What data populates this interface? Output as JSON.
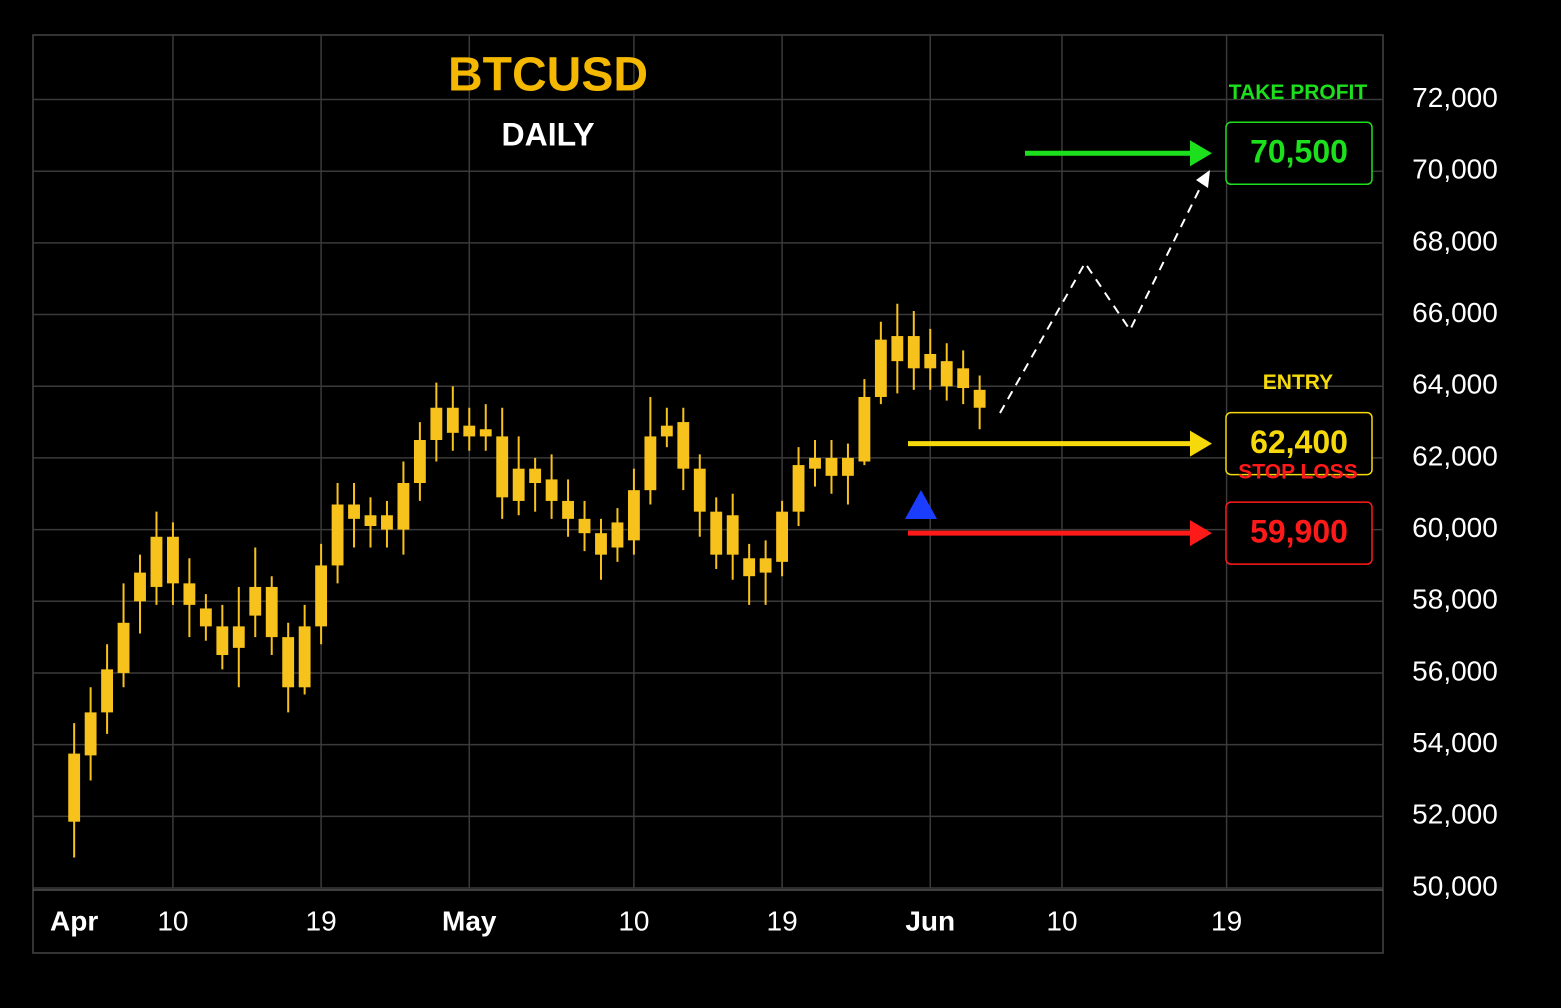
{
  "chart_data": {
    "type": "candlestick",
    "title": "BTCUSD",
    "subtitle": "DAILY",
    "categories": [
      null,
      null,
      "Apr",
      null,
      null,
      null,
      null,
      null,
      "10",
      null,
      null,
      null,
      null,
      null,
      null,
      null,
      null,
      "19",
      null,
      null,
      null,
      null,
      null,
      null,
      null,
      null,
      "May",
      null,
      null,
      null,
      null,
      null,
      null,
      null,
      null,
      null,
      "10",
      null,
      null,
      null,
      null,
      null,
      null,
      null,
      null,
      "19",
      null,
      null,
      null,
      null,
      null,
      null,
      null,
      null,
      "Jun",
      null,
      null,
      null,
      null,
      null,
      null,
      null,
      "10",
      null,
      null,
      null,
      null,
      null,
      null,
      null,
      null,
      null,
      "19",
      null,
      null,
      null,
      null,
      null,
      null,
      null,
      null,
      null
    ],
    "open": [
      null,
      null,
      51850,
      53700,
      54900,
      56000,
      58000,
      58400,
      59800,
      58500,
      57800,
      57300,
      56700,
      57600,
      58400,
      57000,
      55600,
      57300,
      59000,
      60300,
      60400,
      60400,
      60000,
      61300,
      62500,
      63400,
      62900,
      62800,
      62600,
      60800,
      61700,
      61400,
      60800,
      60300,
      59900,
      59500,
      59700,
      61100,
      62600,
      63000,
      61700,
      60500,
      60400,
      59200,
      58800,
      59100,
      60500,
      61700,
      62000,
      61500,
      61900,
      63700,
      65400,
      65400,
      64900,
      64700,
      64500,
      63900,
      null,
      null,
      null,
      null,
      null,
      null,
      null,
      null,
      null,
      null,
      null,
      null,
      null,
      null,
      null,
      null,
      null,
      null,
      null,
      null,
      null,
      null,
      null,
      null
    ],
    "high": [
      null,
      null,
      54600,
      55600,
      56800,
      58500,
      59300,
      60500,
      60200,
      59200,
      58200,
      57900,
      58400,
      59500,
      58700,
      57400,
      57900,
      59600,
      61300,
      61300,
      60900,
      60800,
      61900,
      63000,
      64100,
      64000,
      63400,
      63500,
      63400,
      62600,
      62000,
      62100,
      61400,
      60800,
      60300,
      60600,
      61700,
      63700,
      63400,
      63400,
      62100,
      60900,
      61000,
      59600,
      59700,
      60800,
      62300,
      62500,
      62500,
      62400,
      64200,
      65800,
      66300,
      66100,
      65600,
      65200,
      65000,
      64300,
      null,
      null,
      null,
      null,
      null,
      null,
      null,
      null,
      null,
      null,
      null,
      null,
      null,
      null,
      null,
      null,
      null,
      null,
      null,
      null,
      null,
      null,
      null,
      null
    ],
    "low": [
      null,
      null,
      50850,
      53000,
      54300,
      55600,
      57100,
      57900,
      57900,
      57000,
      56900,
      56100,
      55600,
      57000,
      56500,
      54900,
      55400,
      56800,
      58500,
      59500,
      59500,
      59500,
      59300,
      60800,
      61900,
      62200,
      62200,
      62200,
      60300,
      60400,
      60500,
      60300,
      59800,
      59400,
      58600,
      59100,
      59300,
      60700,
      62300,
      61100,
      59800,
      58900,
      58600,
      57900,
      57900,
      58700,
      60100,
      61200,
      61000,
      60700,
      61800,
      63500,
      63800,
      63900,
      63900,
      63600,
      63500,
      62800,
      null,
      null,
      null,
      null,
      null,
      null,
      null,
      null,
      null,
      null,
      null,
      null,
      null,
      null,
      null,
      null,
      null,
      null,
      null,
      null,
      null,
      null,
      null,
      null
    ],
    "close": [
      null,
      null,
      53750,
      54900,
      56100,
      57400,
      58800,
      59800,
      58500,
      57900,
      57300,
      56500,
      57300,
      58400,
      57000,
      55600,
      57300,
      59000,
      60700,
      60700,
      60100,
      60000,
      61300,
      62500,
      63400,
      62700,
      62600,
      62600,
      60900,
      61700,
      61300,
      60800,
      60300,
      59900,
      59300,
      60200,
      61100,
      62600,
      62900,
      61700,
      60500,
      59300,
      59300,
      58700,
      59200,
      60500,
      61800,
      62000,
      61500,
      62000,
      63700,
      65300,
      64700,
      64500,
      64500,
      64000,
      63950,
      63400,
      null,
      null,
      null,
      null,
      null,
      null,
      null,
      null,
      null,
      null,
      null,
      null,
      null,
      null,
      null,
      null,
      null,
      null,
      null,
      null,
      null,
      null,
      null,
      null
    ],
    "color": "#f7c21b",
    "ylim": [
      50000,
      73800
    ],
    "yticks": [
      {
        "value": 50000,
        "label": "50,000"
      },
      {
        "value": 52000,
        "label": "52,000"
      },
      {
        "value": 54000,
        "label": "54,000"
      },
      {
        "value": 56000,
        "label": "56,000"
      },
      {
        "value": 58000,
        "label": "58,000"
      },
      {
        "value": 60000,
        "label": "60,000"
      },
      {
        "value": 62000,
        "label": "62,000"
      },
      {
        "value": 64000,
        "label": "64,000"
      },
      {
        "value": 66000,
        "label": "66,000"
      },
      {
        "value": 68000,
        "label": "68,000"
      },
      {
        "value": 70000,
        "label": "70,000"
      },
      {
        "value": 72000,
        "label": "72,000"
      }
    ],
    "grid": true,
    "levels": [
      {
        "name": "TAKE PROFIT",
        "value": 70500,
        "value_label": "70,500",
        "color": "#1de01d"
      },
      {
        "name": "ENTRY",
        "value": 62400,
        "value_label": "62,400",
        "color": "#f5d90a"
      },
      {
        "name": "STOP LOSS",
        "value": 59900,
        "value_label": "59,900",
        "color": "#ff1a1a"
      }
    ]
  }
}
